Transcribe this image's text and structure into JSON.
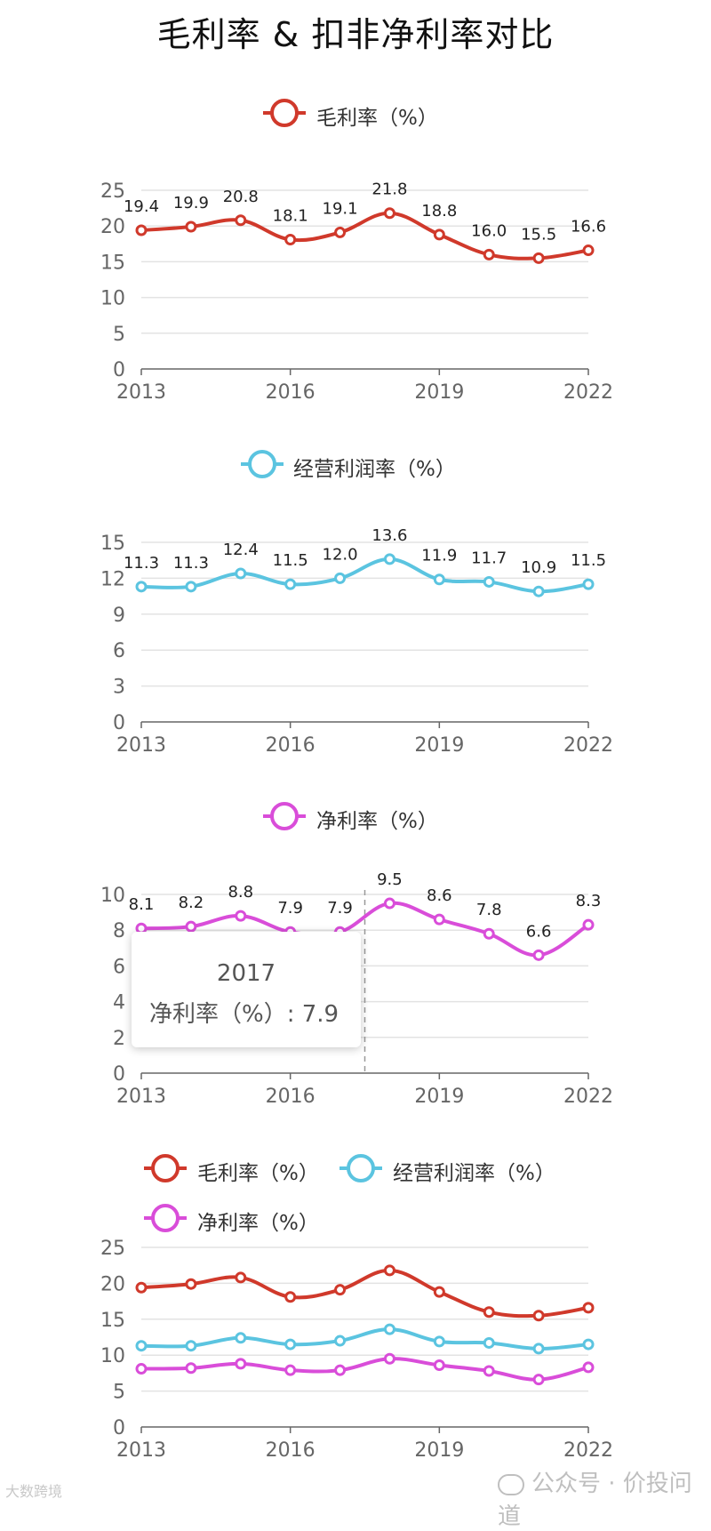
{
  "title": "毛利率 & 扣非净利率对比",
  "colors": {
    "gross": "#d0392b",
    "op": "#5bc4e0",
    "net": "#d94dd9",
    "grid": "#e3e3e3",
    "axis": "#666666"
  },
  "chart_data": [
    {
      "type": "line",
      "x": [
        2013,
        2014,
        2015,
        2016,
        2017,
        2018,
        2019,
        2020,
        2021,
        2022
      ],
      "xticks": [
        "2013",
        "2016",
        "2019",
        "2022"
      ],
      "ylim": [
        0,
        25
      ],
      "yticks": [
        "0",
        "5",
        "10",
        "15",
        "20",
        "25"
      ],
      "series": [
        {
          "name": "毛利率（%）",
          "color": "gross",
          "values": [
            19.4,
            19.9,
            20.8,
            18.1,
            19.1,
            21.8,
            18.8,
            16.0,
            15.5,
            16.6
          ],
          "labels": [
            "19.4",
            "19.9",
            "20.8",
            "18.1",
            "19.1",
            "21.8",
            "18.8",
            "16.0",
            "15.5",
            "16.6"
          ]
        }
      ],
      "legend": "top-center",
      "grid": true
    },
    {
      "type": "line",
      "x": [
        2013,
        2014,
        2015,
        2016,
        2017,
        2018,
        2019,
        2020,
        2021,
        2022
      ],
      "xticks": [
        "2013",
        "2016",
        "2019",
        "2022"
      ],
      "ylim": [
        0,
        15
      ],
      "yticks": [
        "0",
        "3",
        "6",
        "9",
        "12",
        "15"
      ],
      "series": [
        {
          "name": "经营利润率（%）",
          "color": "op",
          "values": [
            11.3,
            11.3,
            12.4,
            11.5,
            12.0,
            13.6,
            11.9,
            11.7,
            10.9,
            11.5
          ],
          "labels": [
            "11.3",
            "11.3",
            "12.4",
            "11.5",
            "12.0",
            "13.6",
            "11.9",
            "11.7",
            "10.9",
            "11.5"
          ]
        }
      ],
      "legend": "top-center",
      "grid": true
    },
    {
      "type": "line",
      "x": [
        2013,
        2014,
        2015,
        2016,
        2017,
        2018,
        2019,
        2020,
        2021,
        2022
      ],
      "xticks": [
        "2013",
        "2016",
        "2019",
        "2022"
      ],
      "ylim": [
        0,
        10
      ],
      "yticks": [
        "0",
        "2",
        "4",
        "6",
        "8",
        "10"
      ],
      "series": [
        {
          "name": "净利率（%）",
          "color": "net",
          "values": [
            8.1,
            8.2,
            8.8,
            7.9,
            7.9,
            9.5,
            8.6,
            7.8,
            6.6,
            8.3
          ],
          "labels": [
            "8.1",
            "8.2",
            "8.8",
            "7.9",
            "7.9",
            "9.5",
            "8.6",
            "7.8",
            "6.6",
            "8.3"
          ]
        }
      ],
      "legend": "top-center",
      "grid": true,
      "tooltip": {
        "year": "2017",
        "text": "净利率（%）: 7.9"
      }
    },
    {
      "type": "line",
      "x": [
        2013,
        2014,
        2015,
        2016,
        2017,
        2018,
        2019,
        2020,
        2021,
        2022
      ],
      "xticks": [
        "2013",
        "2016",
        "2019",
        "2022"
      ],
      "ylim": [
        0,
        25
      ],
      "yticks": [
        "0",
        "5",
        "10",
        "15",
        "20",
        "25"
      ],
      "series": [
        {
          "name": "毛利率（%）",
          "color": "gross",
          "values": [
            19.4,
            19.9,
            20.8,
            18.1,
            19.1,
            21.8,
            18.8,
            16.0,
            15.5,
            16.6
          ]
        },
        {
          "name": "经营利润率（%）",
          "color": "op",
          "values": [
            11.3,
            11.3,
            12.4,
            11.5,
            12.0,
            13.6,
            11.9,
            11.7,
            10.9,
            11.5
          ]
        },
        {
          "name": "净利率（%）",
          "color": "net",
          "values": [
            8.1,
            8.2,
            8.8,
            7.9,
            7.9,
            9.5,
            8.6,
            7.8,
            6.6,
            8.3
          ]
        }
      ],
      "legend": "top-left",
      "grid": true
    }
  ],
  "watermark_left": "大数跨境",
  "watermark_right": "公众号 · 价投问道"
}
